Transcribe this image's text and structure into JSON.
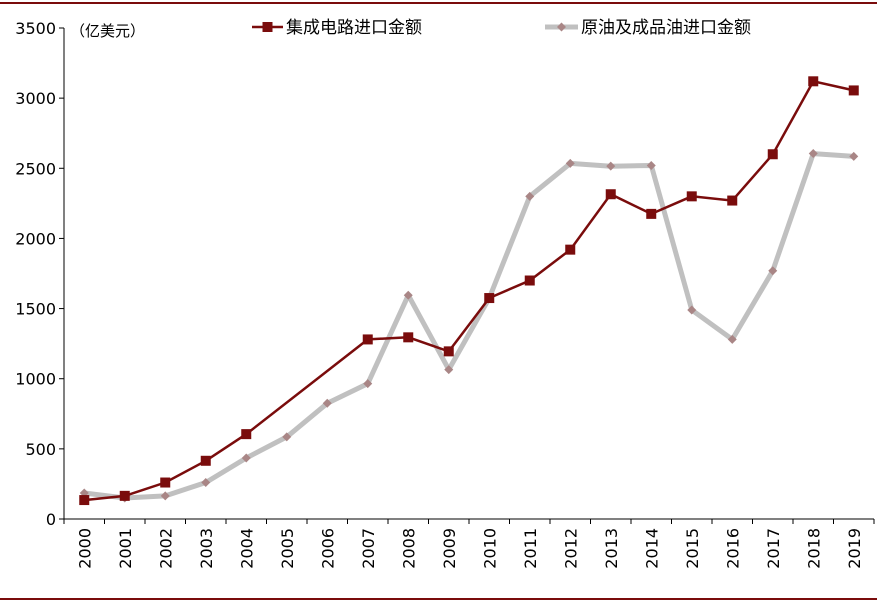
{
  "chart_data": {
    "type": "line",
    "unit_label": "（亿美元）",
    "x": [
      "2000",
      "2001",
      "2002",
      "2003",
      "2004",
      "2005",
      "2006",
      "2007",
      "2008",
      "2009",
      "2010",
      "2011",
      "2012",
      "2013",
      "2014",
      "2015",
      "2016",
      "2017",
      "2018",
      "2019"
    ],
    "ylim": [
      0,
      3500
    ],
    "yticks": [
      0,
      500,
      1000,
      1500,
      2000,
      2500,
      3000,
      3500
    ],
    "grid": false,
    "legend_position": "top",
    "series": [
      {
        "name": "集成电路进口金额",
        "color": "#7a0c0c",
        "marker": "square",
        "points": [
          [
            0,
            135
          ],
          [
            1,
            165
          ],
          [
            2,
            260
          ],
          [
            3,
            415
          ],
          [
            4,
            605
          ],
          [
            7,
            1280
          ],
          [
            8,
            1295
          ],
          [
            9,
            1195
          ],
          [
            10,
            1575
          ],
          [
            11,
            1700
          ],
          [
            12,
            1920
          ],
          [
            13,
            2315
          ],
          [
            14,
            2175
          ],
          [
            15,
            2300
          ],
          [
            16,
            2270
          ],
          [
            17,
            2600
          ],
          [
            18,
            3120
          ],
          [
            19,
            3055
          ]
        ]
      },
      {
        "name": "原油及成品油进口金额",
        "color": "#c0c0c0",
        "marker_color": "#a98686",
        "marker": "diamond",
        "points": [
          [
            0,
            185
          ],
          [
            1,
            150
          ],
          [
            2,
            165
          ],
          [
            3,
            260
          ],
          [
            4,
            435
          ],
          [
            5,
            585
          ],
          [
            6,
            825
          ],
          [
            7,
            965
          ],
          [
            8,
            1595
          ],
          [
            9,
            1065
          ],
          [
            10,
            1575
          ],
          [
            11,
            2300
          ],
          [
            12,
            2535
          ],
          [
            13,
            2515
          ],
          [
            14,
            2520
          ],
          [
            15,
            1490
          ],
          [
            16,
            1280
          ],
          [
            17,
            1770
          ],
          [
            18,
            2605
          ],
          [
            19,
            2585
          ]
        ]
      }
    ]
  }
}
